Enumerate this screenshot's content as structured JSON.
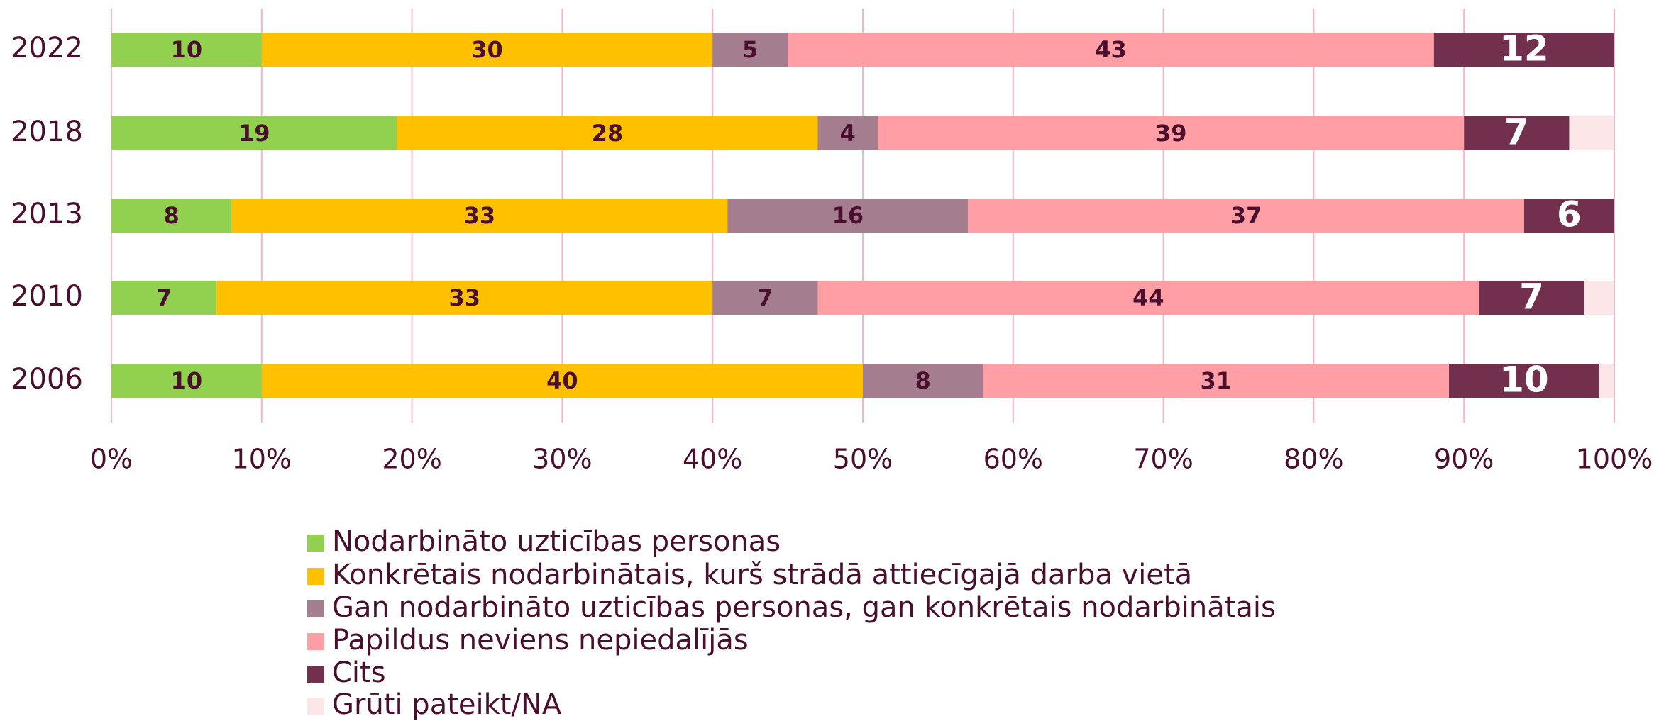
{
  "chart_data": {
    "type": "stacked-bar-horizontal",
    "categories": [
      "2022",
      "2018",
      "2013",
      "2010",
      "2006"
    ],
    "series": [
      {
        "name": "Nodarbināto uzticības personas",
        "color": "#92d050",
        "label_color": "#4a0f2e",
        "values": [
          10,
          19,
          8,
          7,
          10
        ]
      },
      {
        "name": "Konkrētais nodarbinātais, kurš strādā attiecīgajā darba vietā",
        "color": "#ffc000",
        "label_color": "#4a0f2e",
        "values": [
          30,
          28,
          33,
          33,
          40
        ]
      },
      {
        "name": "Gan nodarbināto uzticības personas, gan konkrētais nodarbinātais",
        "color": "#a47d8e",
        "label_color": "#4a0f2e",
        "values": [
          5,
          4,
          16,
          7,
          8
        ]
      },
      {
        "name": "Papildus neviens nepiedalījās",
        "color": "#ff9ea5",
        "label_color": "#4a0f2e",
        "values": [
          43,
          39,
          37,
          44,
          31
        ]
      },
      {
        "name": "Cits",
        "color": "#722f4e",
        "label_color": "#ffffff",
        "values": [
          12,
          7,
          6,
          7,
          10
        ]
      },
      {
        "name": "Grūti pateikt/NA",
        "color": "#fde6e8",
        "values": [
          0,
          3,
          0,
          2,
          1
        ]
      }
    ],
    "xlim": [
      0,
      100
    ],
    "xticks": [
      {
        "value": 0,
        "label": "0%"
      },
      {
        "value": 10,
        "label": "10%"
      },
      {
        "value": 20,
        "label": "20%"
      },
      {
        "value": 30,
        "label": "30%"
      },
      {
        "value": 40,
        "label": "40%"
      },
      {
        "value": 50,
        "label": "50%"
      },
      {
        "value": 60,
        "label": "60%"
      },
      {
        "value": 70,
        "label": "70%"
      },
      {
        "value": 80,
        "label": "80%"
      },
      {
        "value": 90,
        "label": "90%"
      },
      {
        "value": 100,
        "label": "100%"
      }
    ],
    "grid": true,
    "legend": "bottom"
  }
}
